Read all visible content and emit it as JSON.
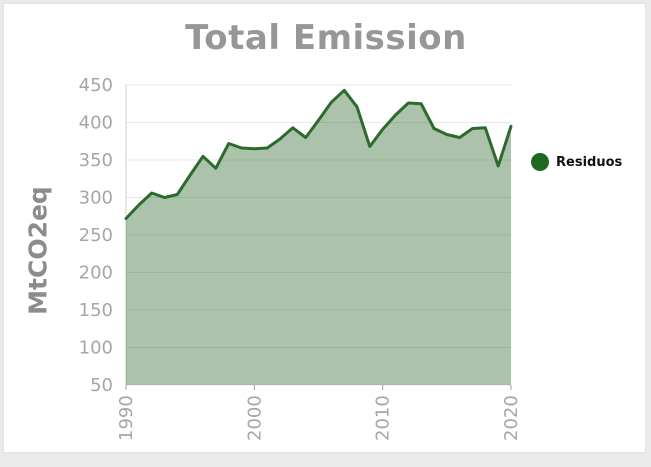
{
  "title": "Total Emission",
  "y_axis": {
    "label": "MtCO2eq",
    "ticks": [
      450,
      400,
      350,
      300,
      250,
      200,
      150,
      100,
      50
    ]
  },
  "x_axis": {
    "ticks": [
      1990,
      2000,
      2010,
      2020
    ]
  },
  "legend": {
    "items": [
      {
        "label": "Residuos",
        "color": "#1e6823"
      }
    ]
  },
  "colors": {
    "line": "#2d6a2d",
    "fill": "#2d6a2d",
    "fill_opacity": 0.4,
    "grid": "#e7e7e7",
    "axis": "#cfcfcf",
    "tick_mark": "#a0a0a0",
    "tick_text": "#a6a6a6",
    "title_text": "#979797",
    "y_title_text": "#8c8c8c",
    "card_background": "#ffffff",
    "frame_background": "#eaeaea"
  },
  "chart_data": {
    "type": "area",
    "title": "Total Emission",
    "ylabel": "MtCO2eq",
    "xlabel": "",
    "grid": true,
    "legend_position": "right",
    "xlim": [
      1990,
      2020
    ],
    "ylim": [
      50,
      450
    ],
    "y_tick_step": 50,
    "x": [
      1990,
      1991,
      1992,
      1993,
      1994,
      1995,
      1996,
      1997,
      1998,
      1999,
      2000,
      2001,
      2002,
      2003,
      2004,
      2005,
      2006,
      2007,
      2008,
      2009,
      2010,
      2011,
      2012,
      2013,
      2014,
      2015,
      2016,
      2017,
      2018,
      2019,
      2020
    ],
    "series": [
      {
        "name": "Residuos",
        "color": "#2d6a2d",
        "values": [
          272,
          290,
          306,
          300,
          304,
          330,
          355,
          339,
          372,
          366,
          365,
          366,
          378,
          393,
          380,
          403,
          427,
          443,
          421,
          368,
          391,
          410,
          426,
          425,
          392,
          384,
          380,
          392,
          393,
          342,
          395
        ]
      }
    ]
  }
}
